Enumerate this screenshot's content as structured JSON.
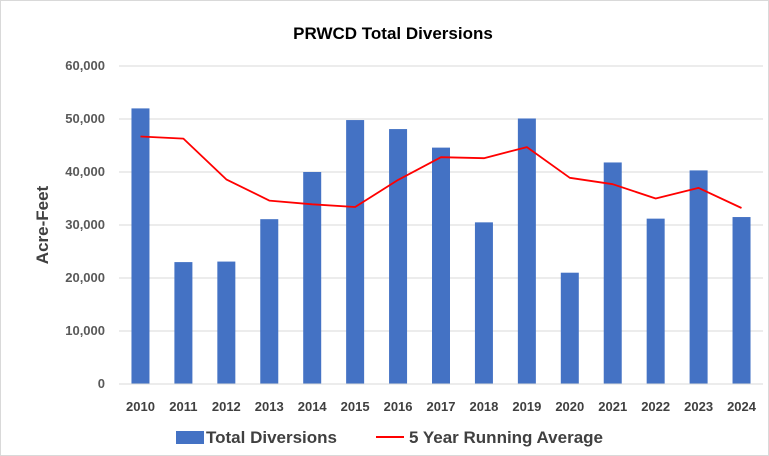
{
  "chart_data": {
    "type": "bar",
    "title": "PRWCD Total Diversions",
    "xlabel": "",
    "ylabel": "Acre-Feet",
    "ylim": [
      0,
      60000
    ],
    "yticks": [
      "0",
      "10,000",
      "20,000",
      "30,000",
      "40,000",
      "50,000",
      "60,000"
    ],
    "ytick_values": [
      0,
      10000,
      20000,
      30000,
      40000,
      50000,
      60000
    ],
    "categories": [
      "2010",
      "2011",
      "2012",
      "2013",
      "2014",
      "2015",
      "2016",
      "2017",
      "2018",
      "2019",
      "2020",
      "2021",
      "2022",
      "2023",
      "2024"
    ],
    "grid": true,
    "legend_position": "bottom",
    "series": [
      {
        "name": "Total Diversions",
        "type": "bar",
        "color": "#4472c4",
        "values": [
          52000,
          23000,
          23100,
          31100,
          40000,
          49800,
          48100,
          44600,
          30500,
          50100,
          21000,
          41800,
          31200,
          40300,
          31500
        ]
      },
      {
        "name": "5 Year Running Average",
        "type": "line",
        "color": "#ff0000",
        "values": [
          46700,
          46300,
          38600,
          34600,
          33900,
          33400,
          38500,
          42800,
          42600,
          44700,
          38900,
          37700,
          35000,
          37000,
          33200
        ]
      }
    ]
  }
}
